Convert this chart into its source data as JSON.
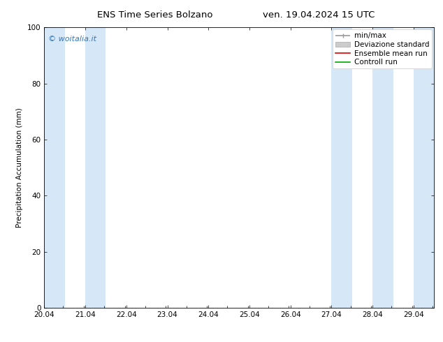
{
  "title_left": "ENS Time Series Bolzano",
  "title_right": "ven. 19.04.2024 15 UTC",
  "ylabel": "Precipitation Accumulation (mm)",
  "xlim_min": 20.04,
  "xlim_max": 29.54,
  "ylim": [
    0,
    100
  ],
  "yticks": [
    0,
    20,
    40,
    60,
    80,
    100
  ],
  "xtick_labels": [
    "20.04",
    "21.04",
    "22.04",
    "23.04",
    "24.04",
    "25.04",
    "26.04",
    "27.04",
    "28.04",
    "29.04"
  ],
  "xtick_positions": [
    20.04,
    21.04,
    22.04,
    23.04,
    24.04,
    25.04,
    26.04,
    27.04,
    28.04,
    29.04
  ],
  "shaded_bands": [
    [
      20.04,
      20.54
    ],
    [
      21.04,
      21.54
    ],
    [
      27.04,
      27.54
    ],
    [
      28.04,
      28.54
    ],
    [
      29.04,
      29.54
    ]
  ],
  "band_color": "#d6e8f7",
  "watermark_text": "© woitalia.it",
  "watermark_color": "#3377bb",
  "legend_entries": [
    {
      "label": "min/max",
      "color": "#999999",
      "lw": 1.2
    },
    {
      "label": "Deviazione standard",
      "color": "#cccccc",
      "lw": 5
    },
    {
      "label": "Ensemble mean run",
      "color": "#dd0000",
      "lw": 1.2
    },
    {
      "label": "Controll run",
      "color": "#00aa00",
      "lw": 1.2
    }
  ],
  "font_size": 7.5,
  "title_font_size": 9.5,
  "bg_color": "#ffffff"
}
